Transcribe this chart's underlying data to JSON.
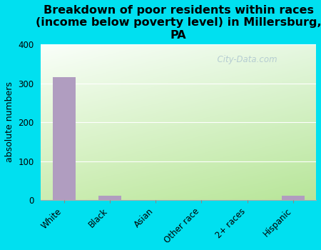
{
  "categories": [
    "White",
    "Black",
    "Asian",
    "Other race",
    "2+ races",
    "Hispanic"
  ],
  "values": [
    315,
    11,
    0,
    0,
    0,
    11
  ],
  "bar_color": "#b09dc0",
  "title": "Breakdown of poor residents within races\n(income below poverty level) in Millersburg,\nPA",
  "ylabel": "absolute numbers",
  "ylim": [
    0,
    400
  ],
  "yticks": [
    0,
    100,
    200,
    300,
    400
  ],
  "background_outer": "#00e0f0",
  "watermark": "  City-Data.com",
  "title_fontsize": 11.5,
  "ylabel_fontsize": 9,
  "tick_fontsize": 8.5,
  "grad_top_left": "#fafffe",
  "grad_bottom_right": "#c8eab0"
}
